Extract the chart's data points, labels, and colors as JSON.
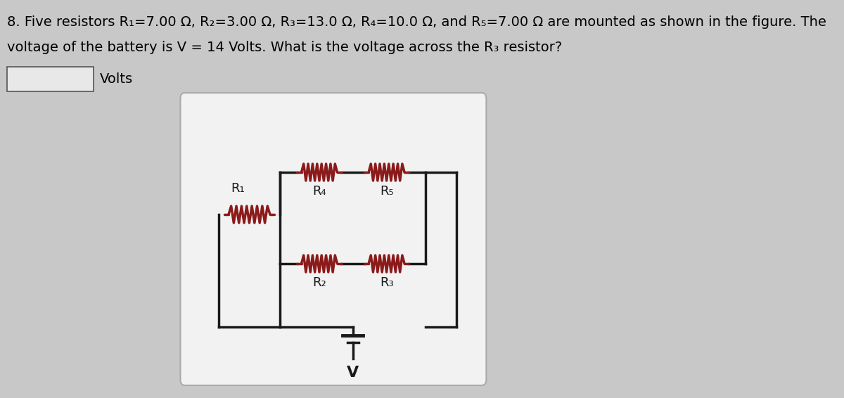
{
  "title_line1": "8. Five resistors R₁=7.00 Ω, R₂=3.00 Ω, R₃=13.0 Ω, R₄=10.0 Ω, and R₅=7.00 Ω are mounted as shown in the figure. The",
  "title_line2": "voltage of the battery is V = 14 Volts. What is the voltage across the R₃ resistor?",
  "answer_label": "Volts",
  "bg_color": "#c8c8c8",
  "panel_bg": "#f2f2f2",
  "wire_color": "#1a1a1a",
  "resistor_color": "#8b1a1a",
  "text_color": "#000000",
  "title_fontsize": 14,
  "label_fontsize": 13
}
